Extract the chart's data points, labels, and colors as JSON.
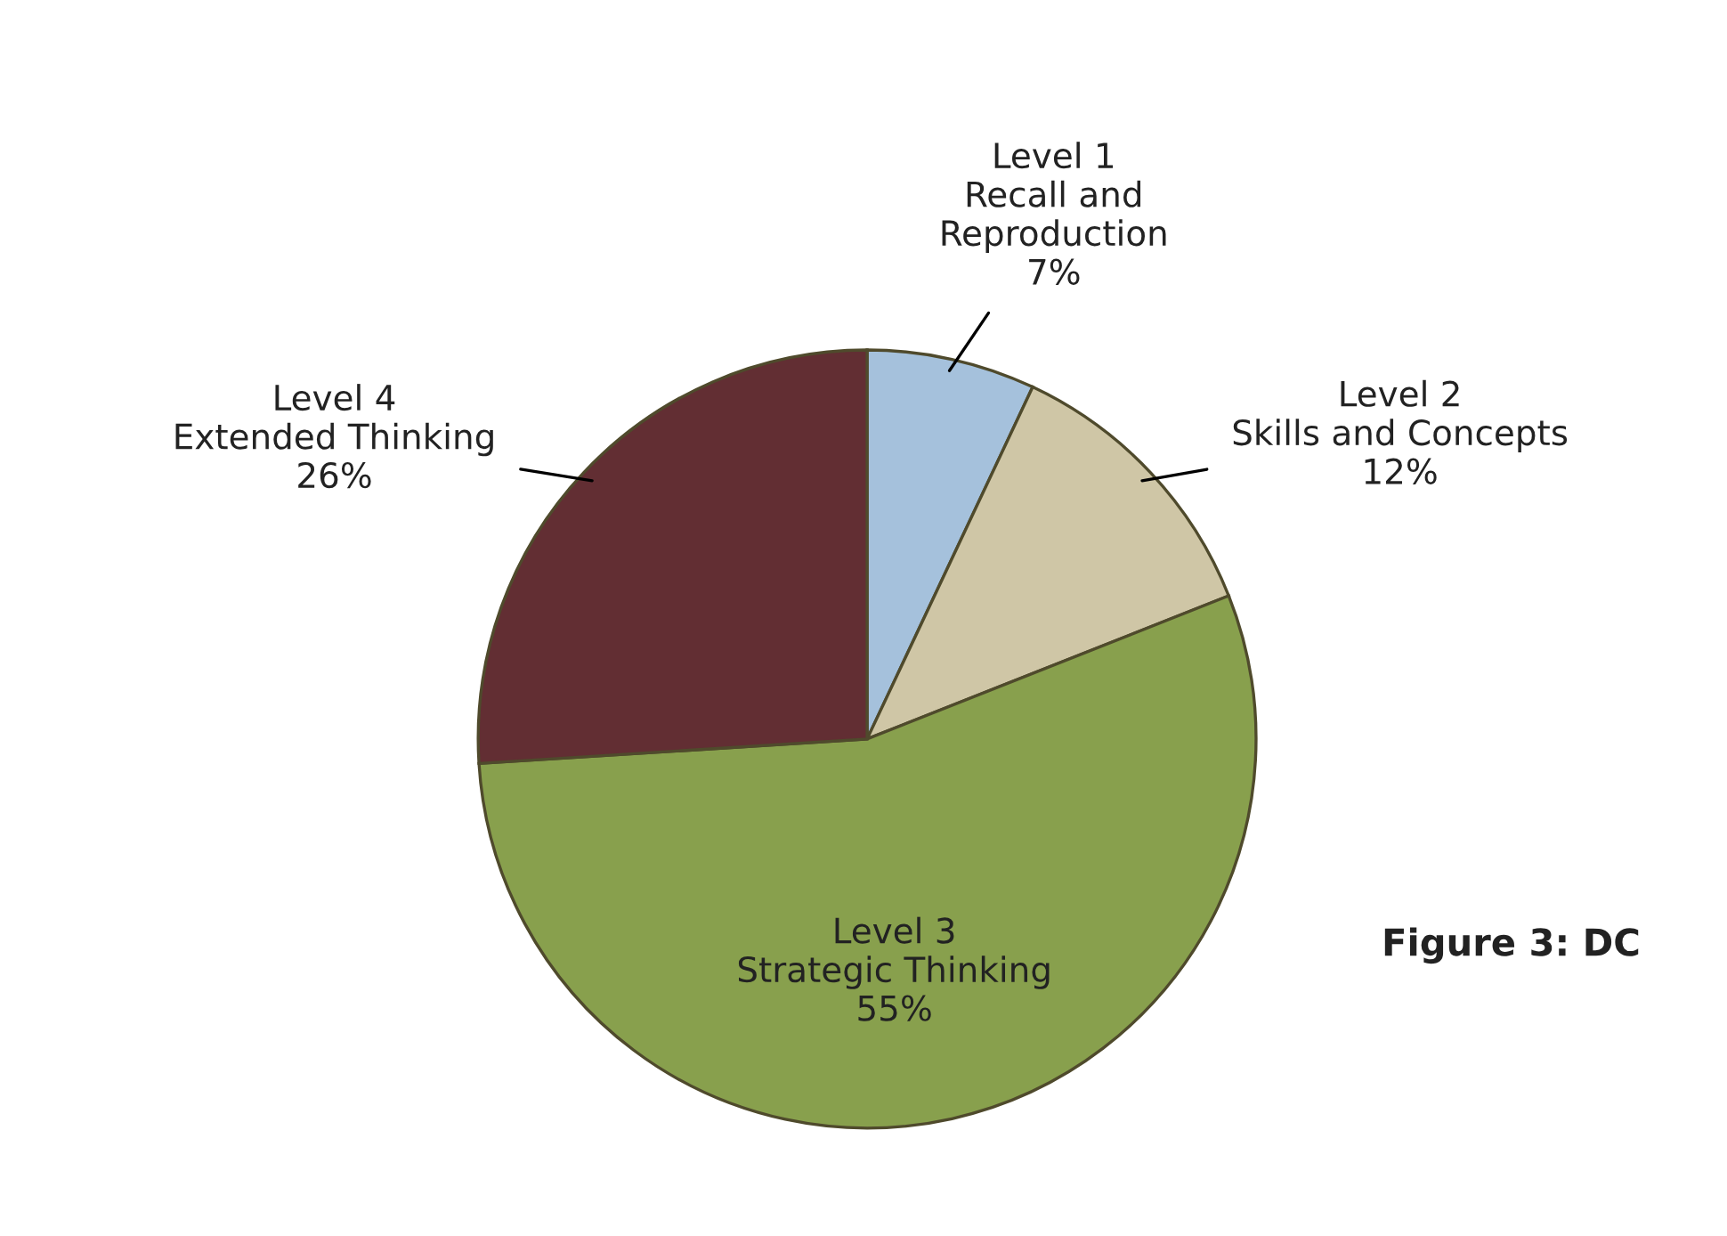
{
  "chart_data": {
    "type": "pie",
    "categories": [
      "Level 1\nRecall and\nReproduction",
      "Level 2\nSkills and Concepts",
      "Level 3\nStrategic Thinking",
      "Level 4\nExtended Thinking"
    ],
    "values": [
      7,
      12,
      55,
      26
    ],
    "value_labels": [
      "7%",
      "12%",
      "55%",
      "26%"
    ],
    "colors": [
      "#a5c1dc",
      "#cfc6a6",
      "#88a04d",
      "#622e33"
    ],
    "annotations": [
      "Figure 3: DC"
    ]
  }
}
